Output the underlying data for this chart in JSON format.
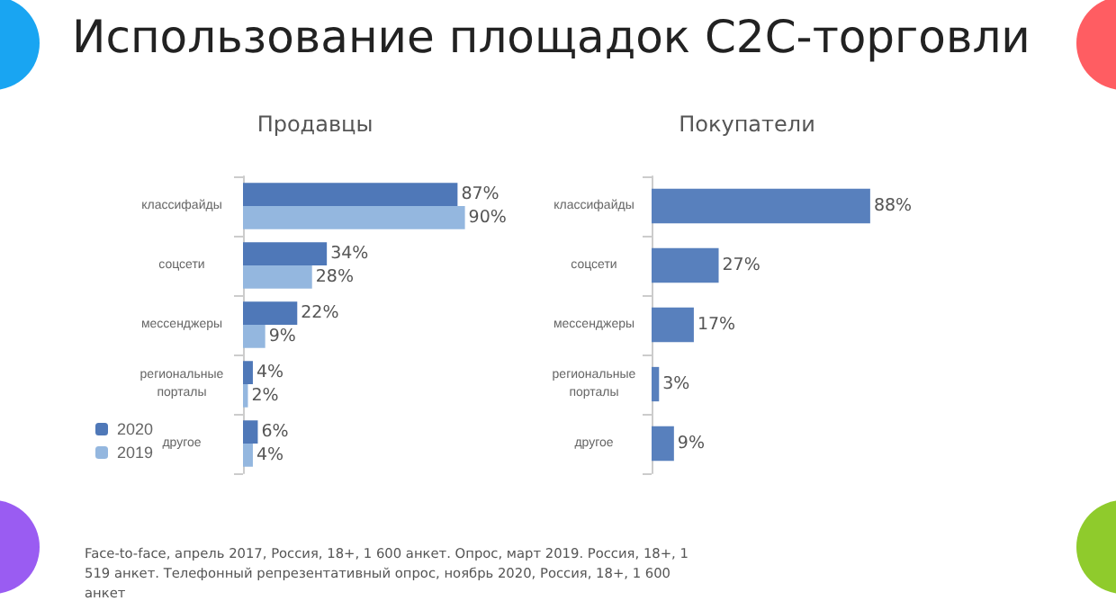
{
  "chart_data": [
    {
      "type": "bar",
      "orientation": "horizontal",
      "title": "Использование площадок C2C-торговли",
      "subtitle": "Продавцы",
      "categories": [
        "классифайды",
        "соцсети",
        "мессенджеры",
        "региональные\nпорталы",
        "другое"
      ],
      "series": [
        {
          "name": "2020",
          "color": "#4f78b8",
          "values": [
            87,
            34,
            22,
            4,
            6
          ],
          "value_labels": [
            "87%",
            "34%",
            "22%",
            "4%",
            "6%"
          ]
        },
        {
          "name": "2019",
          "color": "#94b7df",
          "values": [
            90,
            28,
            9,
            2,
            4
          ],
          "value_labels": [
            "90%",
            "28%",
            "9%",
            "2%",
            "4%"
          ]
        }
      ],
      "legend": "bottom left",
      "annotations": [
        "Face-to-face, апрель 2017, Россия, 18+, 1 600 анкет. Опрос, март 2019. Россия, 18+, 1 519 анкет. Телефонный репрезентативный опрос, ноябрь 2020, Россия, 18+, 1 600 анкет"
      ]
    },
    {
      "type": "bar",
      "orientation": "horizontal",
      "title": "Покупатели",
      "categories": [
        "классифайды",
        "соцсети",
        "мессенджеры",
        "региональные\nпорталы",
        "другое"
      ],
      "series": [
        {
          "color": "#5880bd",
          "values": [
            88,
            27,
            17,
            3,
            9
          ],
          "value_labels": [
            "88%",
            "27%",
            "17%",
            "3%",
            "9%"
          ]
        }
      ]
    }
  ]
}
